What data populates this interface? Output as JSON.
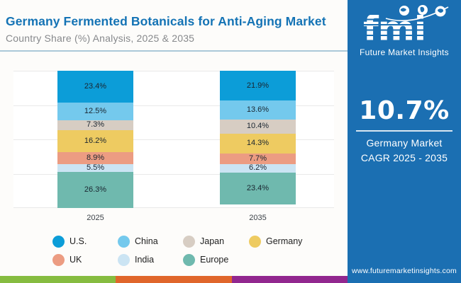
{
  "header": {
    "title": "Germany Fermented Botanicals for Anti-Aging Market",
    "subtitle": "Country Share (%) Analysis, 2025 & 2035"
  },
  "sidebar": {
    "logo_text": "fmi",
    "tagline": "Future Market Insights",
    "cagr_value": "10.7%",
    "cagr_line1": "Germany Market",
    "cagr_line2": "CAGR 2025 - 2035",
    "website": "www.futuremarketinsights.com",
    "background_color": "#1B6FB2"
  },
  "footer_stripe": {
    "colors": [
      "#86BC40",
      "#E0662B",
      "#92278F"
    ]
  },
  "chart_data": {
    "type": "bar",
    "stacked": true,
    "title": "Germany Fermented Botanicals for Anti-Aging Market",
    "subtitle": "Country Share (%) Analysis, 2025 & 2035",
    "categories": [
      "2025",
      "2035"
    ],
    "series": [
      {
        "name": "U.S.",
        "color": "#0C9DD8",
        "values": [
          23.4,
          21.9
        ]
      },
      {
        "name": "China",
        "color": "#74C9ED",
        "values": [
          12.5,
          13.6
        ]
      },
      {
        "name": "Japan",
        "color": "#D7CDC3",
        "values": [
          7.3,
          10.4
        ]
      },
      {
        "name": "Germany",
        "color": "#EECB61",
        "values": [
          16.2,
          14.3
        ]
      },
      {
        "name": "UK",
        "color": "#EC9C82",
        "values": [
          8.9,
          7.7
        ]
      },
      {
        "name": "India",
        "color": "#CBE4F3",
        "values": [
          5.5,
          6.2
        ]
      },
      {
        "name": "Europe",
        "color": "#6FB9AE",
        "values": [
          26.3,
          23.4
        ]
      }
    ],
    "xlabel": "",
    "ylabel": "",
    "ylim": [
      0,
      100
    ],
    "grid": true,
    "gridline_interval": 25,
    "value_suffix": "%",
    "legend_position": "bottom"
  }
}
